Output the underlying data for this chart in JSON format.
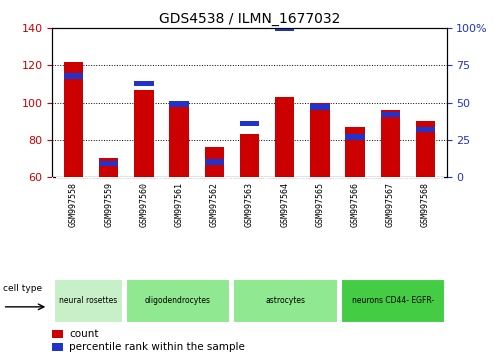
{
  "title": "GDS4538 / ILMN_1677032",
  "samples": [
    "GSM997558",
    "GSM997559",
    "GSM997560",
    "GSM997561",
    "GSM997562",
    "GSM997563",
    "GSM997564",
    "GSM997565",
    "GSM997566",
    "GSM997567",
    "GSM997568"
  ],
  "count_values": [
    122,
    70,
    107,
    101,
    76,
    83,
    103,
    100,
    87,
    96,
    90
  ],
  "percentile_values": [
    68,
    9,
    63,
    49,
    10,
    36,
    100,
    47,
    27,
    42,
    32
  ],
  "ylim_left": [
    60,
    140
  ],
  "ylim_right": [
    0,
    100
  ],
  "left_ticks": [
    60,
    80,
    100,
    120,
    140
  ],
  "right_ticks": [
    0,
    25,
    50,
    75,
    100
  ],
  "right_tick_labels": [
    "0",
    "25",
    "50",
    "75",
    "100%"
  ],
  "cell_groups": [
    {
      "label": "neural rosettes",
      "indices": [
        0,
        1
      ],
      "color": "#c8f0c8"
    },
    {
      "label": "oligodendrocytes",
      "indices": [
        2,
        3,
        4
      ],
      "color": "#90e890"
    },
    {
      "label": "astrocytes",
      "indices": [
        5,
        6,
        7
      ],
      "color": "#90e890"
    },
    {
      "label": "neurons CD44- EGFR-",
      "indices": [
        8,
        9,
        10
      ],
      "color": "#44cc44"
    }
  ],
  "bar_color_red": "#cc0000",
  "bar_color_blue": "#2233cc",
  "bar_width": 0.55,
  "grid_color": "black",
  "tick_color_left": "#cc0000",
  "tick_color_right": "#2233cc",
  "legend_red_label": "count",
  "legend_blue_label": "percentile rank within the sample",
  "cell_type_label": "cell type",
  "tick_area_color": "#cccccc",
  "fig_width": 4.99,
  "fig_height": 3.54,
  "dpi": 100
}
